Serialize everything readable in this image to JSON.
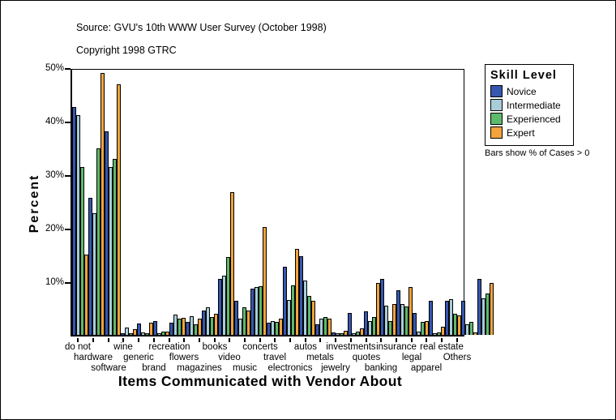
{
  "header": {
    "source": "Source: GVU's 10th WWW User Survey (October 1998)",
    "copyright": "Copyright 1998 GTRC"
  },
  "legend": {
    "title": "Skill Level"
  },
  "note": "Bars show % of Cases > 0",
  "chart_data": {
    "type": "bar",
    "title": "",
    "xlabel": "Items Communicated with Vendor About",
    "ylabel": "Percent",
    "ylim": [
      0,
      50
    ],
    "yticks": [
      10,
      20,
      30,
      40,
      50
    ],
    "ytick_suffix": "%",
    "grid": false,
    "legend_position": "right",
    "categories": [
      "do not",
      "hardware",
      "software",
      "wine",
      "generic",
      "brand",
      "recreation",
      "flowers",
      "magazines",
      "books",
      "video",
      "music",
      "concerts",
      "travel",
      "electronics",
      "autos",
      "metals",
      "jewelry",
      "investments",
      "quotes",
      "banking",
      "insurance",
      "legal",
      "apparel",
      "real estate",
      "Others"
    ],
    "series": [
      {
        "name": "Novice",
        "color": "#3656b0",
        "values": [
          42.5,
          25.6,
          38.1,
          0.3,
          2.1,
          2.5,
          2.3,
          2.4,
          4.5,
          10.5,
          6.3,
          8.6,
          2.2,
          12.7,
          14.7,
          2.0,
          0.4,
          4.1,
          4.4,
          10.5,
          8.4,
          4.1,
          6.3,
          6.3,
          6.3,
          10.5
        ]
      },
      {
        "name": "Intermediate",
        "color": "#a8cdd8",
        "values": [
          41.0,
          22.8,
          31.3,
          1.4,
          0.4,
          0.3,
          3.8,
          3.5,
          5.2,
          11.0,
          3.1,
          8.9,
          2.6,
          6.5,
          10.2,
          3.1,
          0.2,
          0.3,
          2.6,
          5.4,
          5.7,
          0.6,
          0.3,
          6.6,
          1.9,
          6.8
        ]
      },
      {
        "name": "Experienced",
        "color": "#5db96b",
        "values": [
          31.4,
          34.8,
          32.9,
          0.3,
          0.2,
          0.6,
          3.1,
          2.0,
          3.3,
          14.5,
          5.2,
          9.1,
          2.4,
          9.3,
          7.3,
          3.4,
          0.3,
          0.6,
          3.4,
          2.6,
          5.3,
          2.4,
          0.5,
          3.9,
          2.4,
          7.7
        ]
      },
      {
        "name": "Expert",
        "color": "#f2a33c",
        "values": [
          15.0,
          48.9,
          46.8,
          1.1,
          2.3,
          0.6,
          3.2,
          3.0,
          3.9,
          26.7,
          4.5,
          20.1,
          3.1,
          16.1,
          6.4,
          3.1,
          0.7,
          1.2,
          9.7,
          5.7,
          9.0,
          2.6,
          1.5,
          3.6,
          0.5,
          9.7
        ]
      }
    ]
  }
}
